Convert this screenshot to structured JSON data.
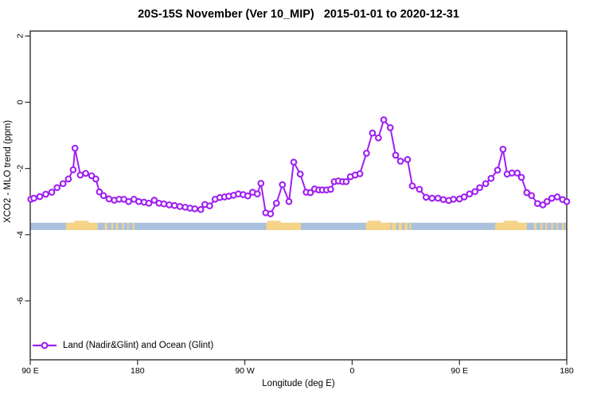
{
  "chart_data": {
    "type": "line",
    "title": "20S-15S November (Ver 10_MIP)   2015-01-01 to 2020-12-31",
    "xlabel": "Longitude (deg E)",
    "ylabel": "XCO2 - MLO trend (ppm)",
    "xlim": [
      90,
      540
    ],
    "ylim": [
      -7.78,
      2.15
    ],
    "grid": false,
    "x_ticks": [
      {
        "pos": 90,
        "label": "90 E"
      },
      {
        "pos": 180,
        "label": "180"
      },
      {
        "pos": 270,
        "label": "90 W"
      },
      {
        "pos": 360,
        "label": "0"
      },
      {
        "pos": 450,
        "label": "90 E"
      },
      {
        "pos": 540,
        "label": "180"
      }
    ],
    "y_ticks": [
      {
        "pos": 2,
        "label": "2"
      },
      {
        "pos": 0,
        "label": "0"
      },
      {
        "pos": -2,
        "label": "-2"
      },
      {
        "pos": -4,
        "label": "-4"
      },
      {
        "pos": -6,
        "label": "-6"
      }
    ],
    "series": [
      {
        "name": "Land (Nadir&Glint) and Ocean (Glint)",
        "color": "#A020F0",
        "marker": "open-circle",
        "points": [
          [
            90.5,
            -2.93
          ],
          [
            93,
            -2.9
          ],
          [
            98,
            -2.85
          ],
          [
            103,
            -2.78
          ],
          [
            108,
            -2.72
          ],
          [
            112.5,
            -2.58
          ],
          [
            117.5,
            -2.46
          ],
          [
            122,
            -2.32
          ],
          [
            126,
            -2.04
          ],
          [
            127.5,
            -1.39
          ],
          [
            132,
            -2.2
          ],
          [
            136.5,
            -2.15
          ],
          [
            141.5,
            -2.22
          ],
          [
            145,
            -2.32
          ],
          [
            148,
            -2.71
          ],
          [
            151.5,
            -2.82
          ],
          [
            156,
            -2.92
          ],
          [
            160.5,
            -2.96
          ],
          [
            164.5,
            -2.93
          ],
          [
            168.5,
            -2.93
          ],
          [
            172.5,
            -3.0
          ],
          [
            177,
            -2.93
          ],
          [
            181,
            -3.0
          ],
          [
            185.5,
            -3.02
          ],
          [
            189.5,
            -3.05
          ],
          [
            194,
            -2.96
          ],
          [
            198,
            -3.05
          ],
          [
            202,
            -3.07
          ],
          [
            206.5,
            -3.1
          ],
          [
            211,
            -3.12
          ],
          [
            215.5,
            -3.15
          ],
          [
            220,
            -3.17
          ],
          [
            224,
            -3.2
          ],
          [
            228,
            -3.22
          ],
          [
            233,
            -3.24
          ],
          [
            236.5,
            -3.09
          ],
          [
            240.5,
            -3.13
          ],
          [
            245,
            -2.93
          ],
          [
            249,
            -2.88
          ],
          [
            253,
            -2.86
          ],
          [
            256.5,
            -2.84
          ],
          [
            260.5,
            -2.81
          ],
          [
            264.5,
            -2.77
          ],
          [
            268.5,
            -2.79
          ],
          [
            272.5,
            -2.83
          ],
          [
            276.5,
            -2.72
          ],
          [
            280.5,
            -2.77
          ],
          [
            283.5,
            -2.45
          ],
          [
            287.5,
            -3.34
          ],
          [
            291.5,
            -3.37
          ],
          [
            296.5,
            -3.05
          ],
          [
            301.5,
            -2.49
          ],
          [
            307,
            -3.0
          ],
          [
            311,
            -1.81
          ],
          [
            316.5,
            -2.17
          ],
          [
            321.5,
            -2.72
          ],
          [
            325,
            -2.73
          ],
          [
            328.5,
            -2.62
          ],
          [
            332,
            -2.65
          ],
          [
            335,
            -2.65
          ],
          [
            338.5,
            -2.65
          ],
          [
            342,
            -2.63
          ],
          [
            345,
            -2.4
          ],
          [
            348.5,
            -2.38
          ],
          [
            352,
            -2.4
          ],
          [
            355,
            -2.4
          ],
          [
            358.5,
            -2.25
          ],
          [
            362.5,
            -2.2
          ],
          [
            366.5,
            -2.16
          ],
          [
            372,
            -1.54
          ],
          [
            377,
            -0.93
          ],
          [
            382,
            -1.08
          ],
          [
            386.5,
            -0.53
          ],
          [
            392,
            -0.77
          ],
          [
            396.5,
            -1.6
          ],
          [
            400.5,
            -1.78
          ],
          [
            406.5,
            -1.73
          ],
          [
            410.5,
            -2.53
          ],
          [
            416.5,
            -2.63
          ],
          [
            422,
            -2.87
          ],
          [
            427,
            -2.9
          ],
          [
            432,
            -2.9
          ],
          [
            436.5,
            -2.94
          ],
          [
            441,
            -2.97
          ],
          [
            445,
            -2.93
          ],
          [
            450,
            -2.92
          ],
          [
            454,
            -2.86
          ],
          [
            458.5,
            -2.77
          ],
          [
            463,
            -2.7
          ],
          [
            467,
            -2.58
          ],
          [
            472,
            -2.46
          ],
          [
            476.5,
            -2.3
          ],
          [
            482,
            -2.05
          ],
          [
            486.5,
            -1.42
          ],
          [
            490,
            -2.17
          ],
          [
            494,
            -2.14
          ],
          [
            498.5,
            -2.14
          ],
          [
            502,
            -2.27
          ],
          [
            506.5,
            -2.73
          ],
          [
            510.5,
            -2.82
          ],
          [
            515.5,
            -3.06
          ],
          [
            520,
            -3.1
          ],
          [
            523.5,
            -3.0
          ],
          [
            527.5,
            -2.9
          ],
          [
            532,
            -2.86
          ],
          [
            536.5,
            -2.94
          ],
          [
            540,
            -3.0
          ]
        ]
      }
    ],
    "band": {
      "description": "horizontal reference band: ocean (blue) with land patches (orange)",
      "y_top": -3.64,
      "y_bottom": -3.86,
      "base_color": "#a9c1dd",
      "patch_color": "#f6d386",
      "patches": [
        [
          120,
          146.5
        ],
        [
          288,
          317
        ],
        [
          371.5,
          392
        ],
        [
          480,
          506.5
        ]
      ],
      "speckles": [
        [
          152.5,
          154.5
        ],
        [
          158,
          159.5
        ],
        [
          162,
          163.5
        ],
        [
          167,
          168.5
        ],
        [
          171.5,
          172.5
        ],
        [
          176,
          177.5
        ],
        [
          393,
          397
        ],
        [
          399,
          402
        ],
        [
          404,
          406.5
        ],
        [
          408,
          409.5
        ],
        [
          512.5,
          514.5
        ],
        [
          518,
          519.5
        ],
        [
          522,
          523.5
        ],
        [
          527,
          528.5
        ],
        [
          531.5,
          532.5
        ],
        [
          536,
          537.5
        ],
        [
          539,
          540
        ]
      ],
      "bumps": [
        [
          127,
          139
        ],
        [
          289,
          300
        ],
        [
          373,
          384
        ],
        [
          487,
          499
        ]
      ]
    },
    "legend": {
      "label": "Land (Nadir&Glint) and Ocean (Glint)",
      "position": "bottom-left"
    },
    "colors": {
      "series": "#A020F0",
      "marker_fill": "#ffffff",
      "axis": "#2f2f2f",
      "text": "#000000"
    }
  }
}
